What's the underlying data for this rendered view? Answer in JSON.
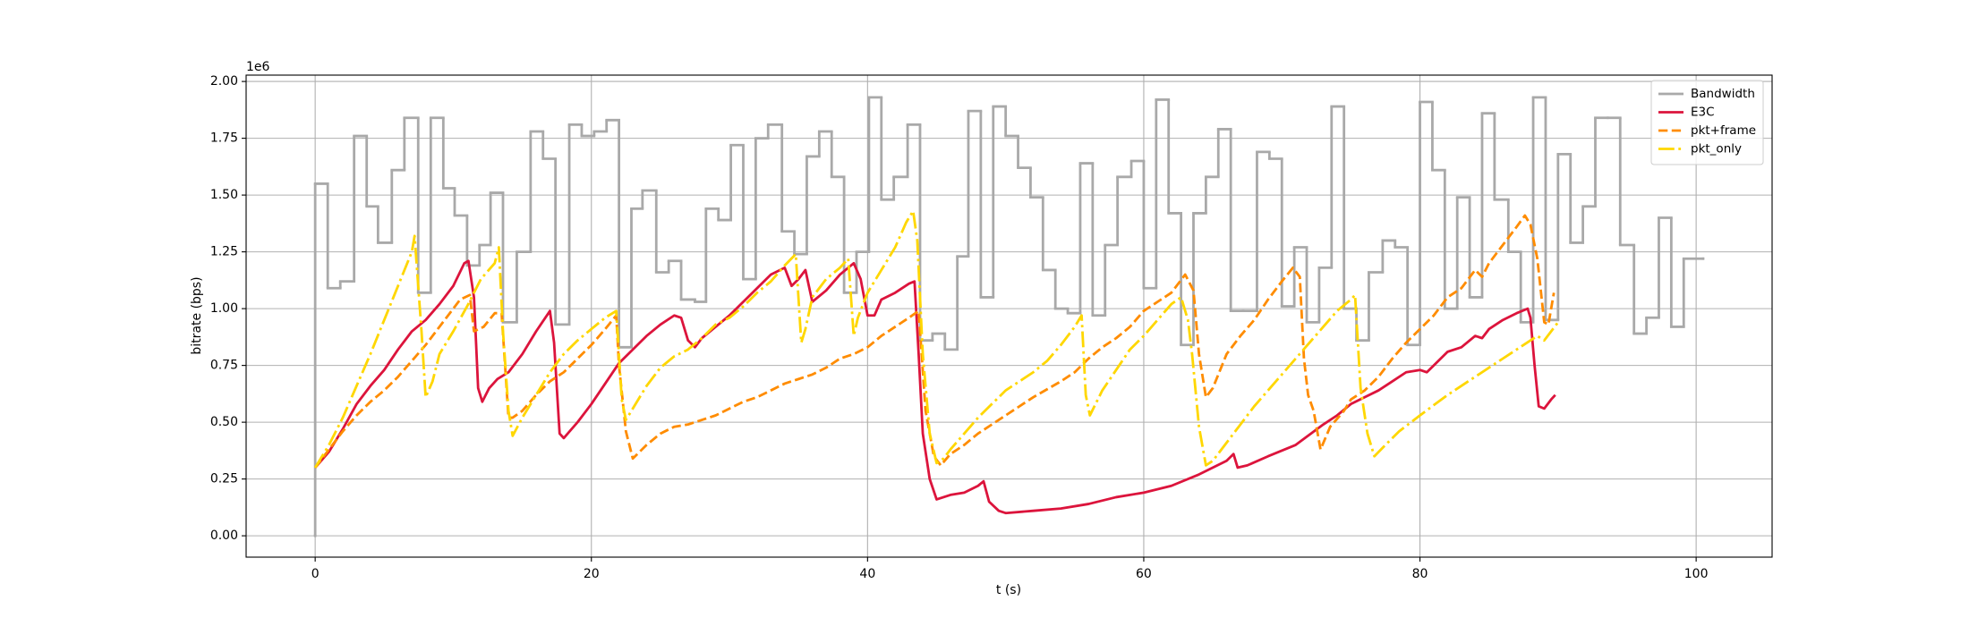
{
  "chart_data": {
    "type": "line",
    "x_label": "t (s)",
    "y_label": "bitrate (bps)",
    "y_offset_label": "1e6",
    "xlim": [
      -5,
      105.5
    ],
    "xticks": [
      0,
      20,
      40,
      60,
      80,
      100
    ],
    "ylim": [
      -94000,
      2028000
    ],
    "yticks": [
      {
        "value": 0,
        "label": "0.00"
      },
      {
        "value": 250000,
        "label": "0.25"
      },
      {
        "value": 500000,
        "label": "0.50"
      },
      {
        "value": 750000,
        "label": "0.75"
      },
      {
        "value": 1000000,
        "label": "1.00"
      },
      {
        "value": 1250000,
        "label": "1.25"
      },
      {
        "value": 1500000,
        "label": "1.50"
      },
      {
        "value": 1750000,
        "label": "1.75"
      },
      {
        "value": 2000000,
        "label": "2.00"
      }
    ],
    "grid": true,
    "legend": "upper right",
    "series": [
      {
        "name": "Bandwidth",
        "color": "#a9a9a9",
        "linestyle": "solid",
        "drawstyle": "steps-post",
        "x": [
          0,
          0,
          0.91,
          1.82,
          2.82,
          3.73,
          4.55,
          5.55,
          6.46,
          7.46,
          8.37,
          9.28,
          10.1,
          11.0,
          11.9,
          12.7,
          13.6,
          14.6,
          15.6,
          16.5,
          17.4,
          18.4,
          19.3,
          20.2,
          21.1,
          22.0,
          22.9,
          23.7,
          24.7,
          25.6,
          26.5,
          27.5,
          28.3,
          29.2,
          30.1,
          31.0,
          31.9,
          32.8,
          33.8,
          34.7,
          35.6,
          36.5,
          37.4,
          38.3,
          39.2,
          40.1,
          41.0,
          41.9,
          42.9,
          43.8,
          44.7,
          45.6,
          46.5,
          47.3,
          48.2,
          49.1,
          50.0,
          50.9,
          51.8,
          52.7,
          53.6,
          54.5,
          55.4,
          56.3,
          57.2,
          58.1,
          59.1,
          60.0,
          60.9,
          61.8,
          62.7,
          63.6,
          64.5,
          65.4,
          66.3,
          67.2,
          68.2,
          69.1,
          70.0,
          70.9,
          71.8,
          72.7,
          73.6,
          74.5,
          75.4,
          76.3,
          77.3,
          78.2,
          79.1,
          80.0,
          80.9,
          81.8,
          82.7,
          83.6,
          84.5,
          85.4,
          86.4,
          87.3,
          88.2,
          89.1,
          90.0,
          90.9,
          91.8,
          92.7,
          93.6,
          94.5,
          95.5,
          96.4,
          97.3,
          98.2,
          99.1,
          100.5
        ],
        "values": [
          0,
          1550000,
          1090000,
          1120000,
          1760000,
          1450000,
          1290000,
          1610000,
          1840000,
          1070000,
          1840000,
          1530000,
          1410000,
          1190000,
          1280000,
          1510000,
          940000,
          1250000,
          1780000,
          1660000,
          930000,
          1810000,
          1760000,
          1780000,
          1830000,
          830000,
          1440000,
          1520000,
          1160000,
          1210000,
          1040000,
          1030000,
          1440000,
          1390000,
          1720000,
          1130000,
          1750000,
          1810000,
          1340000,
          1240000,
          1670000,
          1780000,
          1580000,
          1070000,
          1250000,
          1930000,
          1480000,
          1580000,
          1810000,
          860000,
          890000,
          820000,
          1230000,
          1870000,
          1050000,
          1890000,
          1760000,
          1620000,
          1490000,
          1170000,
          1000000,
          980000,
          1640000,
          970000,
          1280000,
          1580000,
          1650000,
          1090000,
          1920000,
          1420000,
          840000,
          1420000,
          1580000,
          1790000,
          990000,
          990000,
          1690000,
          1660000,
          1010000,
          1270000,
          940000,
          1180000,
          1890000,
          1000000,
          860000,
          1160000,
          1300000,
          1270000,
          840000,
          1910000,
          1610000,
          1000000,
          1490000,
          1050000,
          1860000,
          1480000,
          1250000,
          940000,
          1930000,
          950000,
          1680000,
          1290000,
          1450000,
          1840000,
          1840000,
          1280000,
          890000,
          960000,
          1400000,
          920000,
          1220000,
          1220000
        ]
      },
      {
        "name": "E3C",
        "color": "#dc143c",
        "linestyle": "solid",
        "x": [
          0,
          1,
          2,
          3,
          4,
          5,
          6,
          7,
          8,
          9,
          10,
          10.8,
          11.1,
          11.5,
          11.8,
          12.1,
          12.6,
          13.2,
          14,
          15,
          16,
          17,
          17.3,
          17.7,
          18,
          19,
          20,
          21,
          22,
          23,
          24,
          25,
          26,
          26.5,
          27,
          27.5,
          28,
          29,
          30,
          31,
          32,
          33,
          34,
          34.5,
          35,
          35.5,
          36,
          37,
          38,
          39,
          39.5,
          40,
          40.5,
          41,
          42,
          43,
          43.4,
          43.7,
          44,
          44.5,
          45,
          45.5,
          46,
          47,
          48,
          48.4,
          48.8,
          49.5,
          50,
          52,
          54,
          56,
          58,
          60,
          62,
          64,
          66,
          66.5,
          66.8,
          67.5,
          69,
          71,
          73,
          74,
          75,
          76,
          77,
          78,
          79,
          80,
          80.5,
          81,
          82,
          83,
          84,
          84.5,
          85,
          86,
          87,
          87.8,
          88,
          88.3,
          88.6,
          89,
          89.5,
          89.8
        ],
        "values": [
          300000,
          370000,
          470000,
          580000,
          660000,
          730000,
          820000,
          900000,
          950000,
          1020000,
          1100000,
          1200000,
          1210000,
          1050000,
          650000,
          590000,
          650000,
          690000,
          720000,
          800000,
          900000,
          990000,
          850000,
          450000,
          430000,
          500000,
          580000,
          670000,
          760000,
          820000,
          880000,
          930000,
          970000,
          960000,
          860000,
          830000,
          870000,
          920000,
          970000,
          1030000,
          1090000,
          1150000,
          1180000,
          1100000,
          1130000,
          1170000,
          1030000,
          1080000,
          1150000,
          1200000,
          1130000,
          970000,
          970000,
          1040000,
          1070000,
          1110000,
          1120000,
          800000,
          450000,
          250000,
          160000,
          170000,
          180000,
          190000,
          220000,
          240000,
          150000,
          110000,
          100000,
          110000,
          120000,
          140000,
          170000,
          190000,
          220000,
          270000,
          330000,
          360000,
          300000,
          310000,
          350000,
          400000,
          490000,
          530000,
          580000,
          610000,
          640000,
          680000,
          720000,
          730000,
          720000,
          750000,
          810000,
          830000,
          880000,
          870000,
          910000,
          950000,
          980000,
          1000000,
          960000,
          750000,
          570000,
          560000,
          600000,
          620000
        ]
      },
      {
        "name": "pkt+frame",
        "color": "#ff8c00",
        "linestyle": "dashed",
        "x": [
          0,
          1,
          2,
          3,
          4,
          5,
          6,
          7,
          8,
          9,
          10,
          10.5,
          11.2,
          11.5,
          12.2,
          13,
          13.5,
          14,
          14.3,
          15,
          16,
          17,
          18,
          19,
          20,
          21,
          21.8,
          22,
          22.5,
          23,
          24,
          25,
          26,
          27,
          28,
          29,
          30,
          31,
          32,
          33,
          34,
          35,
          36,
          37,
          38,
          39,
          40,
          41,
          42,
          43,
          43.7,
          44.2,
          44.8,
          45.3,
          46,
          47,
          48,
          50,
          52,
          54,
          55,
          56,
          57,
          58,
          59,
          60,
          61,
          62,
          63,
          63.6,
          64,
          64.5,
          65,
          66,
          67,
          68,
          69,
          70,
          70.8,
          71.3,
          71.6,
          71.9,
          72.3,
          72.8,
          73.5,
          74.5,
          75,
          76,
          77,
          78,
          79,
          80,
          81,
          82,
          83,
          84,
          84.5,
          85,
          86,
          87,
          87.6,
          88,
          88.5,
          89,
          89.3,
          89.7
        ],
        "values": [
          300000,
          380000,
          460000,
          530000,
          590000,
          640000,
          700000,
          770000,
          840000,
          920000,
          1000000,
          1040000,
          1060000,
          900000,
          920000,
          980000,
          980000,
          520000,
          520000,
          550000,
          620000,
          680000,
          720000,
          780000,
          840000,
          910000,
          970000,
          750000,
          460000,
          340000,
          400000,
          450000,
          480000,
          490000,
          510000,
          530000,
          560000,
          590000,
          610000,
          640000,
          670000,
          690000,
          710000,
          740000,
          780000,
          800000,
          830000,
          880000,
          920000,
          960000,
          990000,
          550000,
          350000,
          310000,
          360000,
          400000,
          450000,
          530000,
          610000,
          680000,
          720000,
          780000,
          830000,
          870000,
          920000,
          990000,
          1030000,
          1070000,
          1150000,
          1080000,
          800000,
          610000,
          650000,
          800000,
          880000,
          950000,
          1040000,
          1120000,
          1180000,
          1140000,
          780000,
          620000,
          550000,
          380000,
          480000,
          550000,
          600000,
          640000,
          700000,
          780000,
          850000,
          910000,
          970000,
          1050000,
          1090000,
          1170000,
          1140000,
          1200000,
          1280000,
          1360000,
          1410000,
          1370000,
          1220000,
          940000,
          930000,
          1070000
        ]
      },
      {
        "name": "pkt_only",
        "color": "#ffd700",
        "linestyle": "dashdot",
        "x": [
          0,
          1,
          2,
          3,
          4,
          5,
          6,
          7,
          7.2,
          7.7,
          8,
          8.5,
          9,
          10,
          11,
          12,
          13,
          13.3,
          13.6,
          14,
          14.3,
          15,
          16,
          17,
          18,
          19,
          20,
          21,
          21.8,
          22.2,
          22.5,
          23,
          24,
          25,
          26,
          27,
          28,
          29,
          30,
          31,
          32,
          33,
          34,
          34.8,
          35.2,
          35.5,
          36,
          37,
          38,
          38.6,
          39,
          39.3,
          40,
          41,
          42,
          42.8,
          43.3,
          43.6,
          44,
          44.5,
          45,
          45.5,
          46,
          47,
          48,
          49,
          50,
          52,
          53,
          54,
          55,
          55.5,
          55.8,
          56.1,
          57,
          58,
          59,
          60,
          61,
          62,
          62.7,
          63.2,
          63.5,
          64,
          64.5,
          65,
          66,
          67,
          68,
          69,
          70,
          71,
          72,
          73,
          74,
          75,
          75.3,
          75.7,
          76.2,
          76.7,
          77.5,
          78.5,
          80,
          82,
          84,
          86,
          88,
          88.5,
          89,
          90
        ],
        "values": [
          300000,
          400000,
          520000,
          660000,
          800000,
          950000,
          1100000,
          1250000,
          1320000,
          900000,
          610000,
          680000,
          800000,
          900000,
          1010000,
          1130000,
          1200000,
          1270000,
          900000,
          550000,
          440000,
          520000,
          620000,
          720000,
          800000,
          860000,
          910000,
          960000,
          990000,
          600000,
          510000,
          560000,
          660000,
          740000,
          790000,
          820000,
          870000,
          930000,
          960000,
          1010000,
          1070000,
          1120000,
          1190000,
          1240000,
          850000,
          910000,
          1050000,
          1130000,
          1180000,
          1220000,
          880000,
          960000,
          1070000,
          1170000,
          1270000,
          1380000,
          1430000,
          1300000,
          800000,
          450000,
          320000,
          340000,
          380000,
          450000,
          520000,
          580000,
          640000,
          720000,
          770000,
          840000,
          920000,
          970000,
          620000,
          530000,
          640000,
          730000,
          820000,
          880000,
          950000,
          1020000,
          1050000,
          950000,
          800000,
          480000,
          310000,
          330000,
          410000,
          490000,
          570000,
          640000,
          710000,
          780000,
          850000,
          920000,
          990000,
          1040000,
          1060000,
          650000,
          450000,
          350000,
          400000,
          460000,
          530000,
          620000,
          700000,
          780000,
          860000,
          880000,
          860000,
          940000
        ]
      }
    ]
  }
}
